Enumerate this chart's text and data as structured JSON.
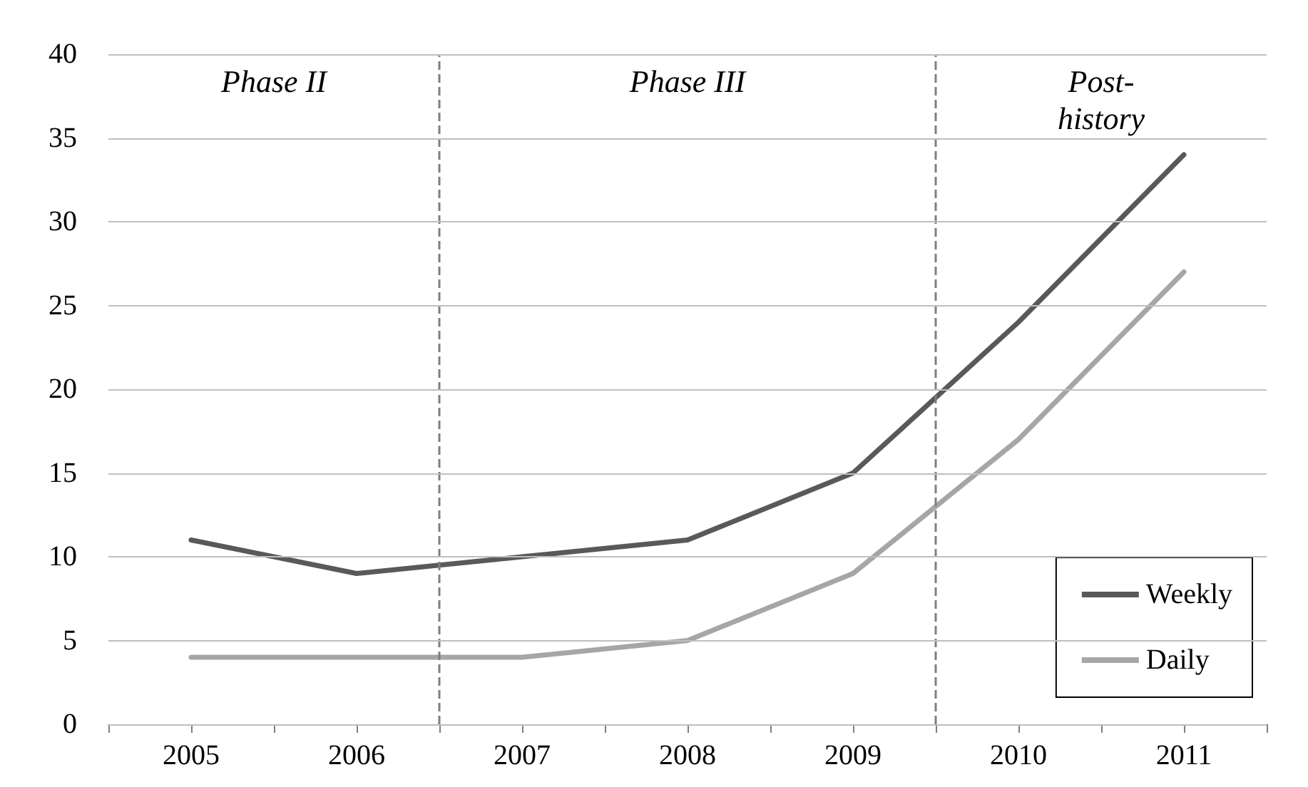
{
  "chart_data": {
    "type": "line",
    "x": [
      2005,
      2006,
      2007,
      2008,
      2009,
      2010,
      2011
    ],
    "series": [
      {
        "name": "Weekly",
        "color": "#595959",
        "values": [
          11,
          9,
          10,
          11,
          15,
          24,
          34
        ]
      },
      {
        "name": "Daily",
        "color": "#a6a6a6",
        "values": [
          4,
          4,
          4,
          5,
          9,
          17,
          27
        ]
      }
    ],
    "xlim": [
      2004.5,
      2011.5
    ],
    "xticks": [
      {
        "value": 2004.5,
        "label": null
      },
      2005,
      {
        "value": 2005.5,
        "label": null
      },
      2006,
      {
        "value": 2006.5,
        "label": null
      },
      2007,
      {
        "value": 2007.5,
        "label": null
      },
      2008,
      {
        "value": 2008.5,
        "label": null
      },
      2009,
      {
        "value": 2009.5,
        "label": null
      },
      2010,
      {
        "value": 2010.5,
        "label": null
      },
      2011,
      {
        "value": 2011.5,
        "label": null
      }
    ],
    "ylim": [
      0,
      40
    ],
    "yticks": [
      0,
      5,
      10,
      15,
      20,
      25,
      30,
      35,
      40
    ],
    "grid": "y",
    "legend": "bottom right",
    "marker": "none",
    "line_style": "solid",
    "ref_lines": [
      {
        "axis": "x",
        "value": 2006.5,
        "color": "#7f7f7f",
        "line_style": "dashed"
      },
      {
        "axis": "x",
        "value": 2009.5,
        "color": "#7f7f7f",
        "line_style": "dashed"
      }
    ],
    "annotations": [
      "Phase II",
      "Phase III",
      "Post-\nhistory"
    ]
  }
}
